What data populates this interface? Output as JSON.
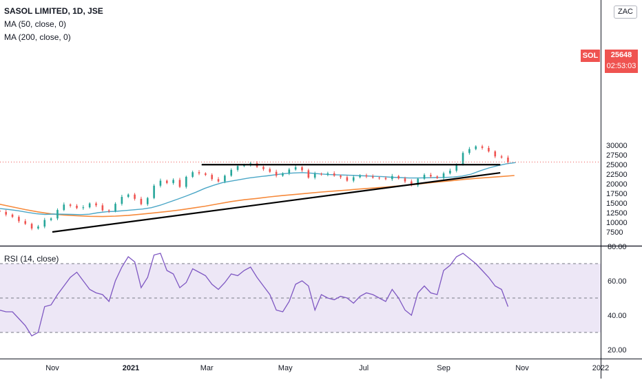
{
  "header": {
    "title": "SASOL LIMITED, 1D, JSE",
    "ma50_label": "MA (50, close, 0)",
    "ma200_label": "MA (200, close, 0)",
    "currency": "ZAC"
  },
  "price_tag": {
    "symbol": "SOL",
    "price": "25648",
    "countdown": "02:53:03"
  },
  "rsi_label": "RSI (14, close)",
  "colors": {
    "up": "#26a69a",
    "down": "#ef5350",
    "ma50": "#4aa6c6",
    "ma200": "#f6893a",
    "rsi": "#7e57c2",
    "rsi_band": "#ede7f6",
    "trendline": "#000000"
  },
  "chart_data": [
    {
      "type": "candlestick",
      "title": "SASOL LIMITED, 1D, JSE",
      "x": [
        "2020-09-01",
        "2020-09-06",
        "2020-09-11",
        "2020-09-16",
        "2020-09-21",
        "2020-09-26",
        "2020-10-01",
        "2020-10-06",
        "2020-10-11",
        "2020-10-16",
        "2020-10-21",
        "2020-10-26",
        "2020-10-31",
        "2020-11-05",
        "2020-11-10",
        "2020-11-15",
        "2020-11-20",
        "2020-11-25",
        "2020-11-30",
        "2020-12-05",
        "2020-12-10",
        "2020-12-15",
        "2020-12-20",
        "2020-12-25",
        "2020-12-30",
        "2021-01-04",
        "2021-01-09",
        "2021-01-14",
        "2021-01-19",
        "2021-01-24",
        "2021-01-29",
        "2021-02-03",
        "2021-02-08",
        "2021-02-13",
        "2021-02-18",
        "2021-02-23",
        "2021-02-28",
        "2021-03-05",
        "2021-03-10",
        "2021-03-15",
        "2021-03-20",
        "2021-03-25",
        "2021-03-30",
        "2021-04-04",
        "2021-04-09",
        "2021-04-14",
        "2021-04-19",
        "2021-04-24",
        "2021-04-29",
        "2021-05-04",
        "2021-05-09",
        "2021-05-14",
        "2021-05-19",
        "2021-05-24",
        "2021-05-29",
        "2021-06-03",
        "2021-06-08",
        "2021-06-13",
        "2021-06-18",
        "2021-06-23",
        "2021-06-28",
        "2021-07-03",
        "2021-07-08",
        "2021-07-13",
        "2021-07-18",
        "2021-07-23",
        "2021-07-28",
        "2021-08-02",
        "2021-08-07",
        "2021-08-12",
        "2021-08-17",
        "2021-08-22",
        "2021-08-27",
        "2021-09-01",
        "2021-09-06",
        "2021-09-11",
        "2021-09-16",
        "2021-09-21",
        "2021-09-26",
        "2021-10-01",
        "2021-10-06",
        "2021-10-11",
        "2021-10-16",
        "2021-10-21"
      ],
      "close": [
        14200,
        13900,
        13500,
        13100,
        12700,
        12000,
        11400,
        10300,
        9600,
        8400,
        8900,
        10600,
        11000,
        13200,
        14600,
        14300,
        13700,
        13900,
        14900,
        14400,
        13100,
        12900,
        14800,
        16600,
        17200,
        16100,
        14700,
        16300,
        19500,
        20800,
        20200,
        21000,
        19200,
        21800,
        23000,
        22700,
        22300,
        21200,
        20600,
        22100,
        23600,
        24600,
        24900,
        25300,
        24400,
        23800,
        23100,
        22100,
        22700,
        23700,
        24300,
        23500,
        21600,
        22600,
        22400,
        22700,
        22100,
        21700,
        20800,
        21700,
        22200,
        21900,
        21600,
        21500,
        21200,
        22000,
        21400,
        20600,
        19600,
        21300,
        22300,
        21900,
        21500,
        22700,
        23400,
        25000,
        28000,
        29000,
        29700,
        29300,
        28400,
        27100,
        26800,
        25648
      ],
      "ma50": [
        14000,
        13900,
        13750,
        13550,
        13300,
        13000,
        12600,
        12250,
        12050,
        12150,
        12100,
        12050,
        12000,
        12100,
        12500,
        12750,
        12850,
        13050,
        13250,
        13450,
        13800,
        14450,
        15250,
        16050,
        16900,
        17800,
        18800,
        19600,
        20300,
        20700,
        21100,
        21500,
        21800,
        22050,
        22350,
        22650,
        22800,
        22900,
        22750,
        22550,
        22400,
        22300,
        22250,
        22150,
        22050,
        21950,
        21850,
        21700,
        21600,
        21500,
        21500,
        21550,
        21600,
        21650,
        21750,
        22000,
        22500,
        23350,
        24100,
        24700,
        25200,
        25500
      ],
      "ma50_x_start": "2020-09-01",
      "ma200": [
        15900,
        15300,
        14700,
        14000,
        13300,
        12700,
        12200,
        11900,
        11700,
        11550,
        11500,
        11600,
        11800,
        12100,
        12450,
        12800,
        13200,
        13700,
        14200,
        14800,
        15400,
        15850,
        16200,
        16600,
        16950,
        17250,
        17550,
        17850,
        18100,
        18350,
        18650,
        18900,
        19150,
        19450,
        19750,
        20100,
        20450,
        20750,
        21100,
        21400,
        21650,
        21900,
        22150
      ],
      "rsi": [
        47,
        46,
        45,
        44,
        43,
        42,
        42,
        38,
        34,
        28,
        30,
        45,
        46,
        52,
        57,
        62,
        65,
        60,
        55,
        53,
        52,
        48,
        60,
        68,
        74,
        71,
        56,
        62,
        75,
        76,
        66,
        64,
        56,
        59,
        67,
        65,
        63,
        58,
        55,
        59,
        64,
        63,
        66,
        68,
        62,
        57,
        52,
        43,
        42,
        48,
        58,
        60,
        57,
        43,
        52,
        50,
        49,
        51,
        50,
        47,
        51,
        53,
        52,
        50,
        48,
        55,
        50,
        43,
        40,
        53,
        57,
        53,
        52,
        66,
        69,
        74,
        76,
        73,
        70,
        66,
        62,
        57,
        55,
        45
      ],
      "trendlines": [
        {
          "from": [
            "2020-11-01",
            7500
          ],
          "to": [
            "2021-10-15",
            22850
          ]
        },
        {
          "from": [
            "2021-02-25",
            24950
          ],
          "to": [
            "2021-10-15",
            24950
          ]
        }
      ],
      "current_price": 25648,
      "ylim": [
        6500,
        30500
      ],
      "y_ticks": [
        "7500",
        "10000",
        "12500",
        "15000",
        "17500",
        "20000",
        "22500",
        "25000",
        "27500",
        "30000"
      ],
      "x_ticks": [
        "Nov",
        "2021",
        "Mar",
        "May",
        "Jul",
        "Sep",
        "Nov",
        "2022"
      ],
      "rsi_ylim": [
        15,
        85
      ],
      "rsi_ticks": [
        "20.00",
        "40.00",
        "60.00",
        "80.00"
      ],
      "rsi_levels": [
        30,
        50,
        70
      ]
    }
  ]
}
